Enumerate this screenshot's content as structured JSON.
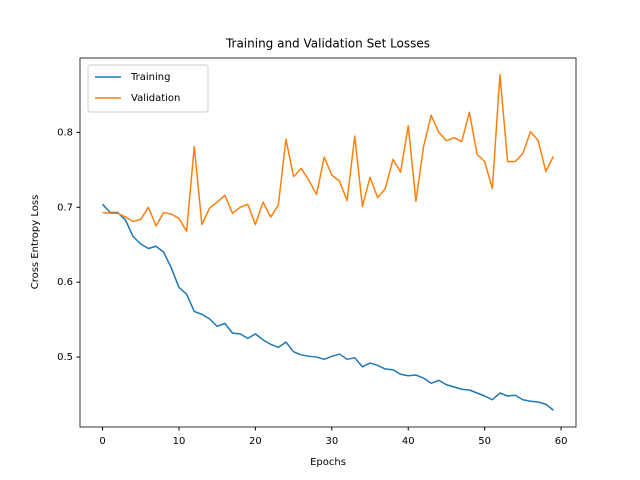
{
  "chart_data": {
    "type": "line",
    "title": "Training and Validation Set Losses",
    "x_label": "Epochs",
    "y_label": "Cross Entropy Loss",
    "x": [
      0,
      1,
      2,
      3,
      4,
      5,
      6,
      7,
      8,
      9,
      10,
      11,
      12,
      13,
      14,
      15,
      16,
      17,
      18,
      19,
      20,
      21,
      22,
      23,
      24,
      25,
      26,
      27,
      28,
      29,
      30,
      31,
      32,
      33,
      34,
      35,
      36,
      37,
      38,
      39,
      40,
      41,
      42,
      43,
      44,
      45,
      46,
      47,
      48,
      49,
      50,
      51,
      52,
      53,
      54,
      55,
      56,
      57,
      58,
      59
    ],
    "series": [
      {
        "name": "Training",
        "color": "#1f77b4",
        "values": [
          0.704,
          0.693,
          0.693,
          0.683,
          0.661,
          0.651,
          0.645,
          0.648,
          0.64,
          0.619,
          0.593,
          0.584,
          0.561,
          0.557,
          0.551,
          0.541,
          0.545,
          0.532,
          0.531,
          0.525,
          0.531,
          0.523,
          0.517,
          0.513,
          0.52,
          0.507,
          0.503,
          0.501,
          0.5,
          0.497,
          0.501,
          0.504,
          0.497,
          0.499,
          0.487,
          0.492,
          0.489,
          0.484,
          0.483,
          0.477,
          0.475,
          0.476,
          0.472,
          0.465,
          0.469,
          0.463,
          0.46,
          0.457,
          0.456,
          0.452,
          0.448,
          0.443,
          0.452,
          0.448,
          0.449,
          0.443,
          0.441,
          0.44,
          0.437,
          0.429
        ]
      },
      {
        "name": "Validation",
        "color": "#ff7f0e",
        "values": [
          0.693,
          0.692,
          0.692,
          0.687,
          0.681,
          0.684,
          0.7,
          0.675,
          0.693,
          0.691,
          0.685,
          0.668,
          0.781,
          0.677,
          0.699,
          0.707,
          0.716,
          0.692,
          0.7,
          0.704,
          0.677,
          0.707,
          0.687,
          0.703,
          0.791,
          0.741,
          0.752,
          0.736,
          0.717,
          0.767,
          0.743,
          0.735,
          0.709,
          0.795,
          0.701,
          0.74,
          0.713,
          0.725,
          0.764,
          0.747,
          0.809,
          0.708,
          0.781,
          0.823,
          0.8,
          0.789,
          0.793,
          0.788,
          0.827,
          0.771,
          0.761,
          0.725,
          0.877,
          0.761,
          0.761,
          0.772,
          0.801,
          0.789,
          0.748,
          0.768
        ]
      }
    ],
    "xlim": [
      -2.95,
      61.95
    ],
    "xticks": [
      0,
      10,
      20,
      30,
      40,
      50,
      60
    ],
    "ylim": [
      0.4066,
      0.8994
    ],
    "yticks": [
      0.5,
      0.6,
      0.7,
      0.8
    ],
    "grid": false,
    "legend": "upper left"
  }
}
